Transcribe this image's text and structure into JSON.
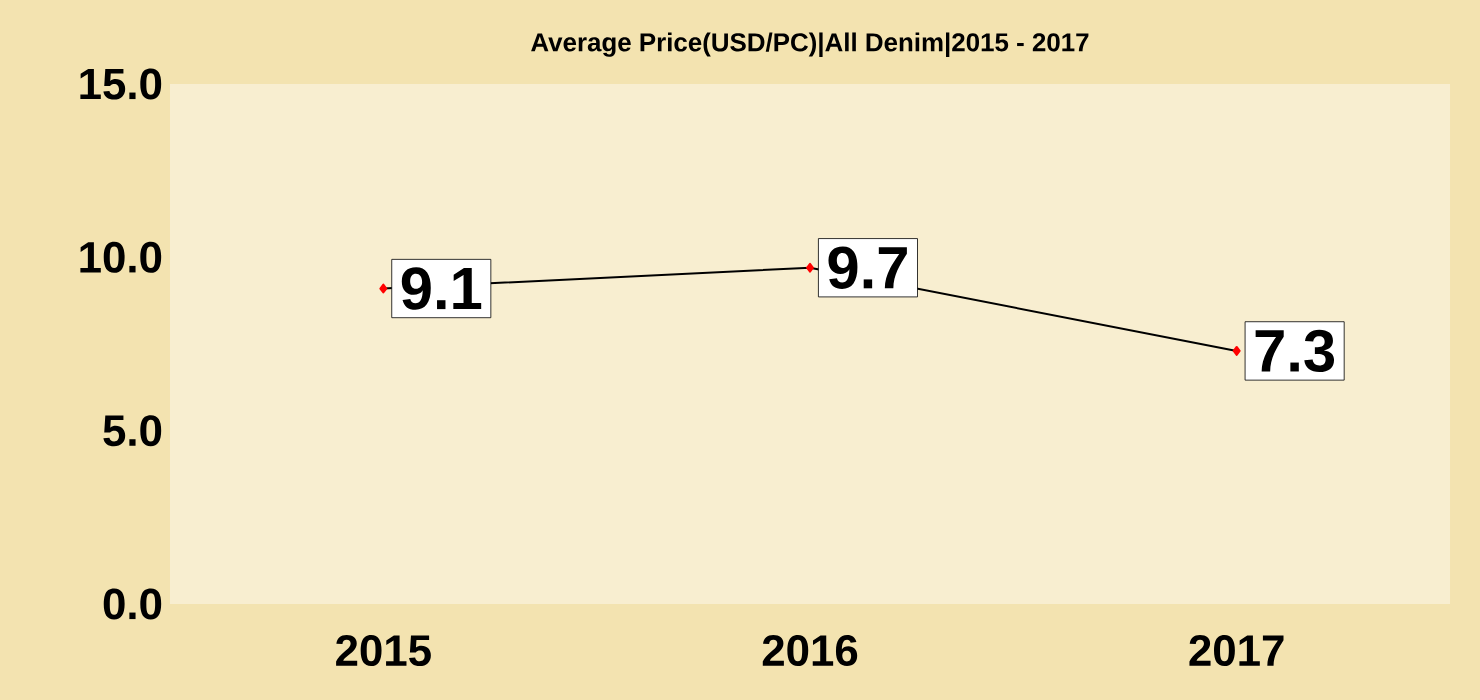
{
  "chart_data": {
    "type": "line",
    "title": "Average Price(USD/PC)|All Denim|2015 - 2017",
    "categories": [
      "2015",
      "2016",
      "2017"
    ],
    "series": [
      {
        "color": "#000000",
        "values": [
          9.1,
          9.7,
          7.3
        ]
      }
    ],
    "ylim": [
      0,
      15
    ],
    "yticks": [
      {
        "value": 0,
        "label": "0.0"
      },
      {
        "value": 5,
        "label": "5.0"
      },
      {
        "value": 10,
        "label": "10.0"
      },
      {
        "value": 15,
        "label": "15.0"
      }
    ],
    "data_labels": true,
    "marker": "diamond",
    "line_style": "solid"
  }
}
